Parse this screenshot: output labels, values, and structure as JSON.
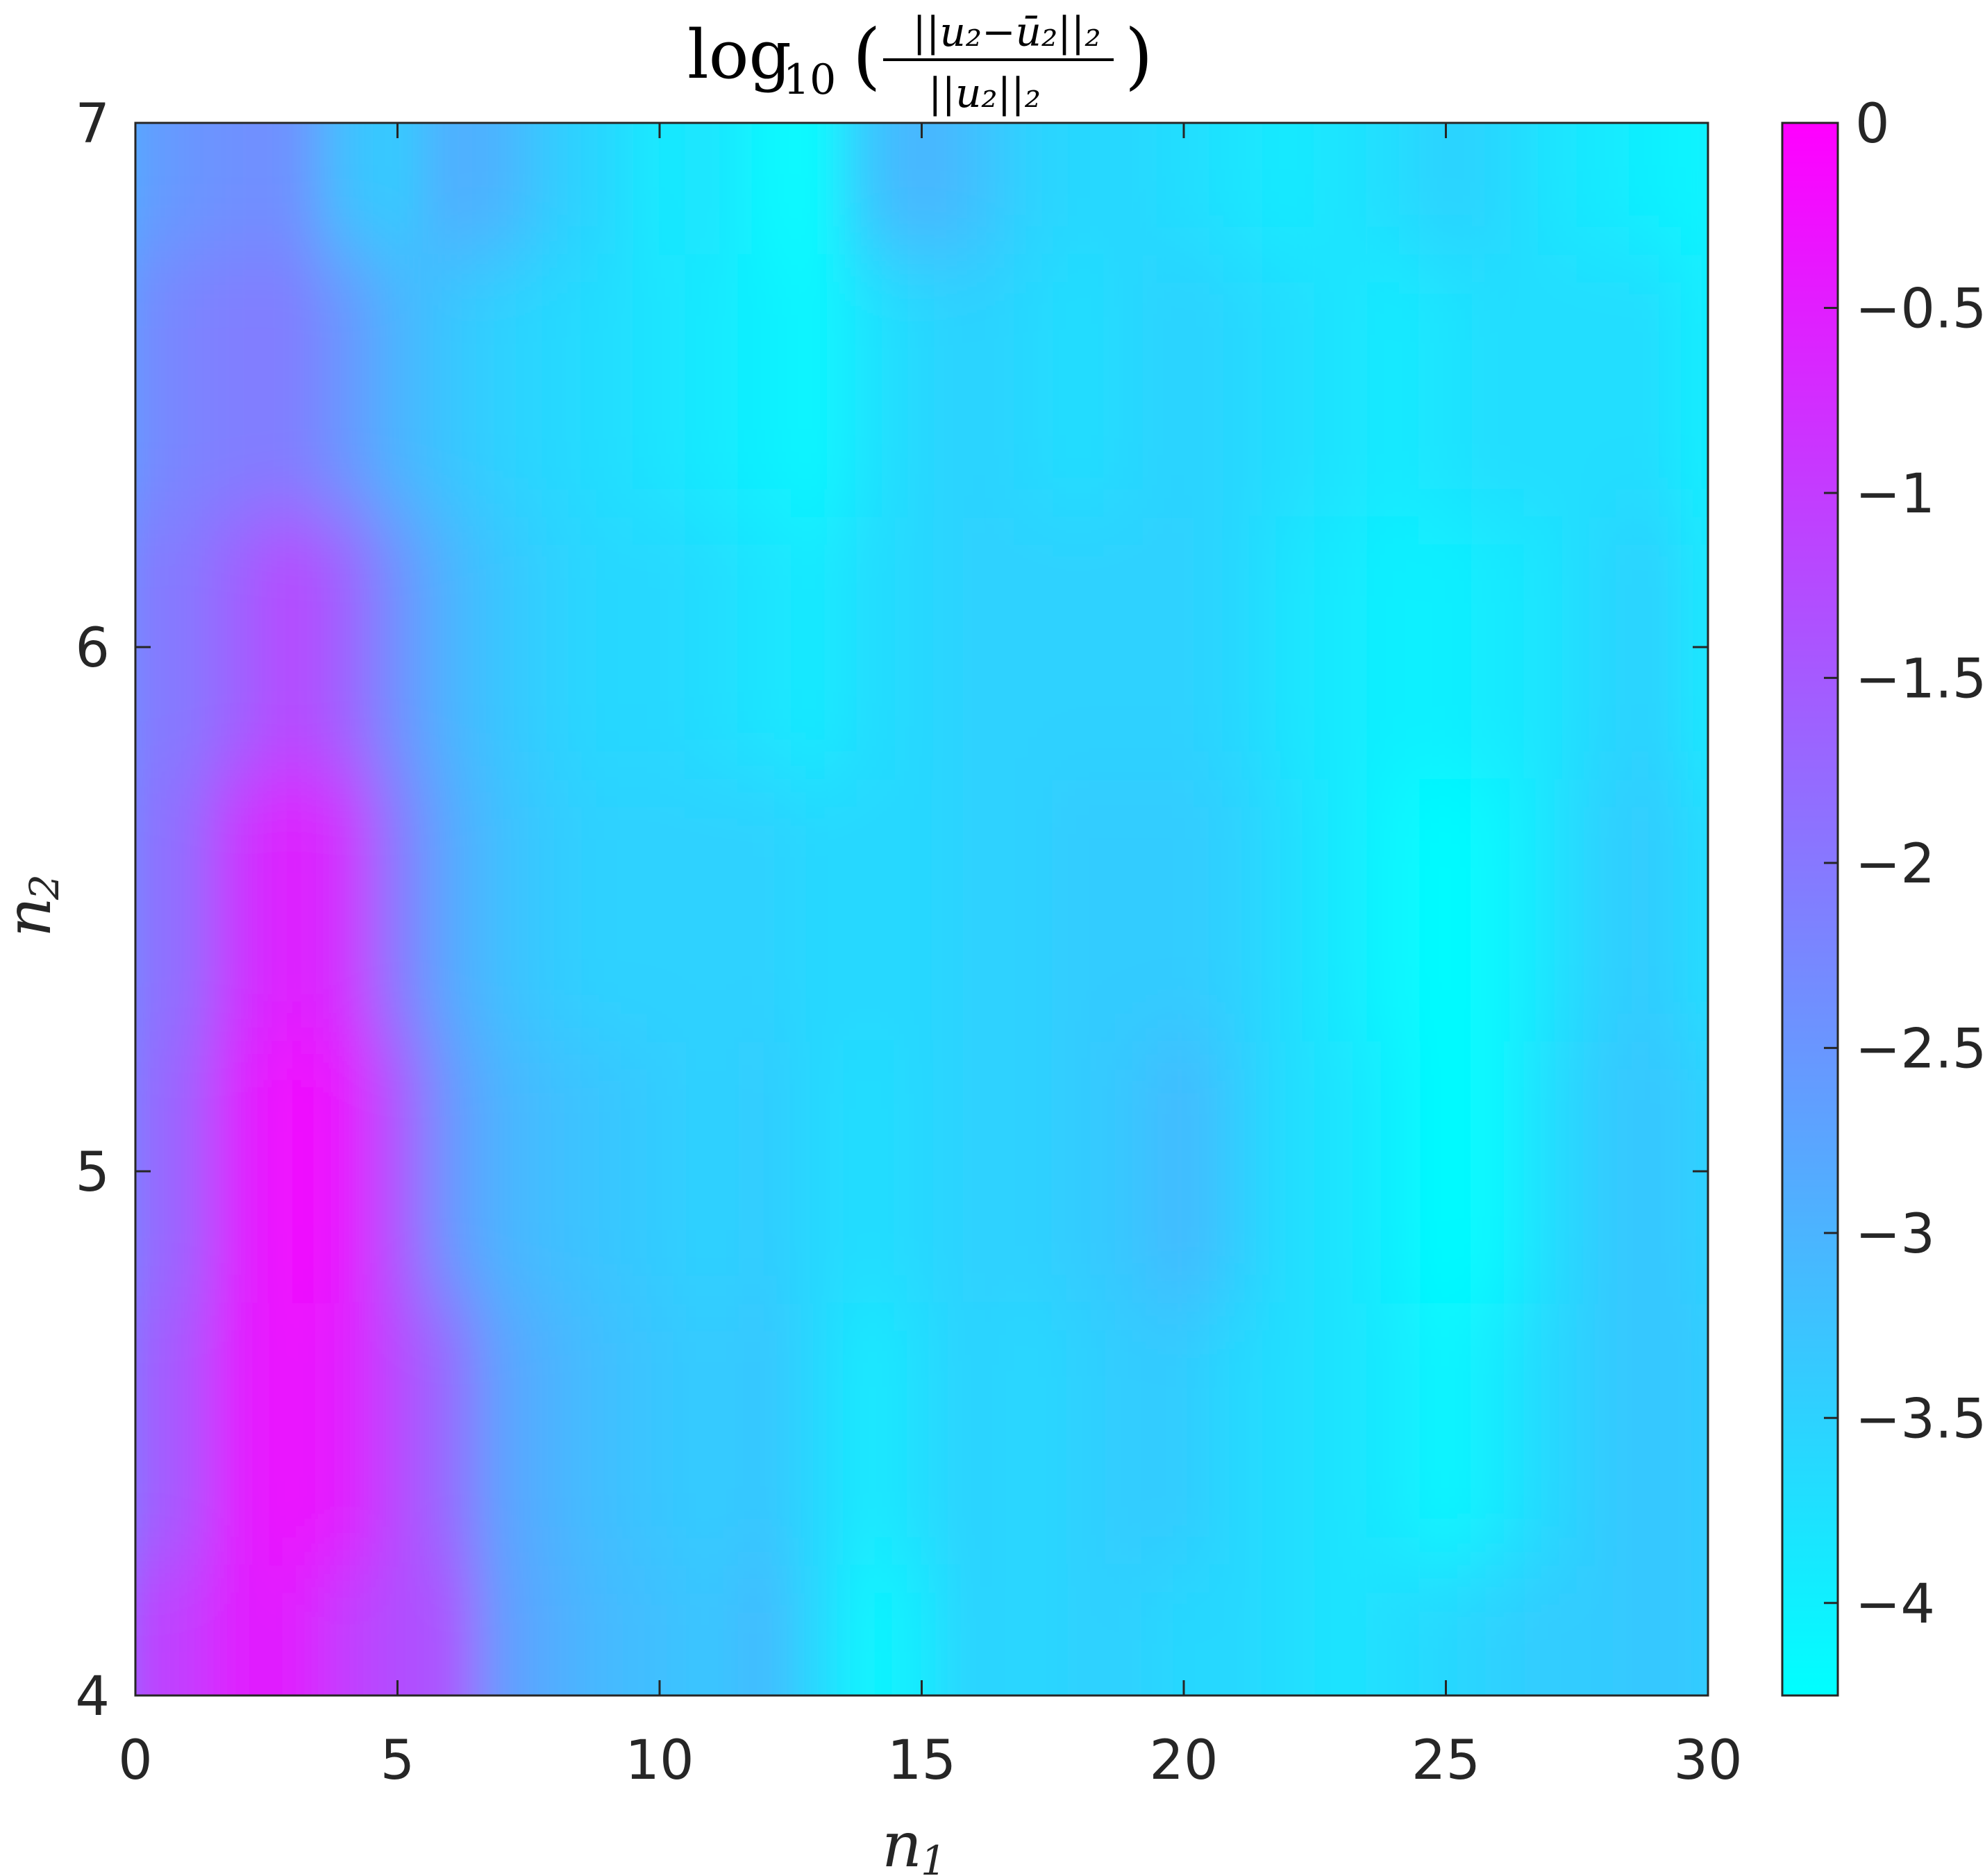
{
  "chart_data": {
    "type": "heatmap",
    "title": {
      "prefix": "log",
      "prefix_sub": "10",
      "open_paren": "(",
      "close_paren": ")",
      "numerator": "||u₂−ū₂||₂",
      "denominator": "||u₂||₂"
    },
    "xlabel": {
      "var": "n",
      "sub": "1"
    },
    "ylabel": {
      "var": "n",
      "sub": "2"
    },
    "xlim": [
      0,
      30
    ],
    "ylim": [
      4,
      7
    ],
    "xticks": [
      0,
      5,
      10,
      15,
      20,
      25,
      30
    ],
    "xtick_labels": [
      "0",
      "5",
      "10",
      "15",
      "20",
      "25",
      "30"
    ],
    "yticks": [
      4,
      5,
      6,
      7
    ],
    "ytick_labels": [
      "4",
      "5",
      "6",
      "7"
    ],
    "colorbar": {
      "limits": [
        -4.25,
        0
      ],
      "ticks": [
        0,
        -0.5,
        -1,
        -1.5,
        -2,
        -2.5,
        -3,
        -3.5,
        -4
      ],
      "tick_labels": [
        "0",
        "−0.5",
        "−1",
        "−1.5",
        "−2",
        "−2.5",
        "−3",
        "−3.5",
        "−4"
      ],
      "colormap": "cool",
      "color_min": "#00ffff",
      "color_max": "#ff00ff"
    },
    "grid": false,
    "surface": {
      "x": [
        0,
        1,
        2,
        3,
        4,
        5,
        6,
        7,
        8,
        9,
        10,
        11,
        12,
        13,
        14,
        15,
        16,
        17,
        18,
        19,
        20,
        21,
        22,
        23,
        24,
        25,
        26,
        27,
        28,
        29,
        30
      ],
      "y": [
        4,
        4.5,
        5,
        5.5,
        6,
        6.5,
        7
      ],
      "z": [
        [
          -1.2,
          -1.0,
          -0.5,
          -0.5,
          -1.0,
          -1.3,
          -1.4,
          -2.6,
          -2.9,
          -3.1,
          -3.2,
          -3.3,
          -3.1,
          -3.6,
          -4.1,
          -3.9,
          -3.5,
          -3.6,
          -3.5,
          -3.5,
          -3.6,
          -3.6,
          -3.7,
          -3.8,
          -3.7,
          -3.6,
          -3.5,
          -3.4,
          -3.4,
          -3.3,
          -3.4
        ],
        [
          -1.7,
          -1.4,
          -0.5,
          -0.3,
          -0.5,
          -1.2,
          -1.8,
          -2.7,
          -3.0,
          -3.2,
          -3.3,
          -3.4,
          -3.3,
          -3.6,
          -3.9,
          -3.7,
          -3.5,
          -3.6,
          -3.5,
          -3.4,
          -3.4,
          -3.6,
          -3.7,
          -3.8,
          -3.9,
          -4.1,
          -3.9,
          -3.6,
          -3.4,
          -3.3,
          -3.4
        ],
        [
          -1.9,
          -1.6,
          -0.6,
          -0.2,
          -0.4,
          -1.4,
          -2.5,
          -3.0,
          -3.2,
          -3.3,
          -3.4,
          -3.5,
          -3.4,
          -3.6,
          -3.7,
          -3.6,
          -3.5,
          -3.5,
          -3.4,
          -3.3,
          -3.1,
          -3.4,
          -3.7,
          -3.8,
          -4.0,
          -4.2,
          -4.1,
          -3.7,
          -3.4,
          -3.3,
          -3.5
        ],
        [
          -2.0,
          -1.8,
          -0.9,
          -0.5,
          -0.8,
          -2.0,
          -2.8,
          -3.2,
          -3.4,
          -3.5,
          -3.5,
          -3.5,
          -3.5,
          -3.6,
          -3.6,
          -3.6,
          -3.5,
          -3.5,
          -3.4,
          -3.4,
          -3.4,
          -3.5,
          -3.7,
          -3.9,
          -4.1,
          -4.2,
          -4.1,
          -3.8,
          -3.5,
          -3.4,
          -3.7
        ],
        [
          -2.1,
          -2.0,
          -1.6,
          -1.2,
          -1.6,
          -2.4,
          -3.0,
          -3.3,
          -3.5,
          -3.6,
          -3.6,
          -3.7,
          -3.8,
          -3.9,
          -3.7,
          -3.6,
          -3.5,
          -3.5,
          -3.5,
          -3.5,
          -3.5,
          -3.6,
          -3.8,
          -3.9,
          -4.0,
          -4.0,
          -3.9,
          -3.8,
          -3.6,
          -3.5,
          -3.9
        ],
        [
          -2.4,
          -2.2,
          -2.1,
          -2.1,
          -2.5,
          -3.0,
          -3.3,
          -3.5,
          -3.6,
          -3.7,
          -3.8,
          -3.9,
          -4.0,
          -4.1,
          -3.8,
          -3.6,
          -3.5,
          -3.6,
          -3.7,
          -3.6,
          -3.5,
          -3.6,
          -3.7,
          -3.8,
          -3.9,
          -3.8,
          -3.7,
          -3.7,
          -3.7,
          -3.7,
          -4.0
        ],
        [
          -2.7,
          -2.5,
          -2.4,
          -2.4,
          -3.2,
          -3.4,
          -2.9,
          -3.0,
          -3.4,
          -3.6,
          -3.9,
          -3.8,
          -4.1,
          -4.2,
          -3.3,
          -3.0,
          -3.2,
          -3.5,
          -3.6,
          -3.6,
          -3.7,
          -3.8,
          -3.9,
          -3.8,
          -3.7,
          -3.5,
          -3.6,
          -3.8,
          -3.9,
          -4.0,
          -4.1
        ]
      ]
    }
  }
}
